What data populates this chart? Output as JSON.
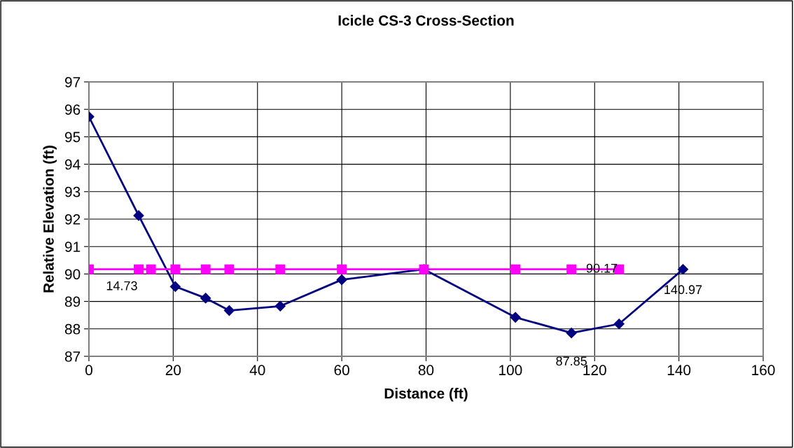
{
  "chart_data": {
    "type": "line",
    "title": "Icicle CS-3 Cross-Section",
    "xlabel": "Distance (ft)",
    "ylabel": "Relative Elevation (ft)",
    "series": [
      {
        "color": "#000080",
        "marker": "diamond",
        "x": [
          0,
          11.8,
          20.5,
          27.7,
          33.3,
          45.4,
          60.0,
          79.5,
          101.2,
          114.5,
          125.8,
          140.97
        ],
        "values": [
          95.73,
          92.13,
          89.54,
          89.12,
          88.67,
          88.83,
          89.79,
          90.17,
          88.42,
          87.85,
          88.18,
          90.17
        ]
      },
      {
        "color": "#ff00ff",
        "marker": "square",
        "x": [
          0,
          11.8,
          14.73,
          20.5,
          27.7,
          33.3,
          45.4,
          60.0,
          79.5,
          101.2,
          114.5,
          125.8
        ],
        "values": [
          90.17,
          90.17,
          90.17,
          90.17,
          90.17,
          90.17,
          90.17,
          90.17,
          90.17,
          90.17,
          90.17,
          90.17
        ]
      }
    ],
    "annotations": [
      {
        "text": "14.73",
        "x": 14.73,
        "y": 90.17
      },
      {
        "text": "90.17",
        "x": 114.5,
        "y": 90.17
      },
      {
        "text": "87.85",
        "x": 114.5,
        "y": 87.85
      },
      {
        "text": "140.97",
        "x": 140.97,
        "y": 90.17
      }
    ],
    "xlim": [
      0,
      160
    ],
    "xticks": [
      0,
      20,
      40,
      60,
      80,
      100,
      120,
      140,
      160
    ],
    "ylim": [
      87,
      97
    ],
    "yticks": [
      87,
      88,
      89,
      90,
      91,
      92,
      93,
      94,
      95,
      96,
      97
    ],
    "grid": true,
    "line_style": "solid"
  }
}
